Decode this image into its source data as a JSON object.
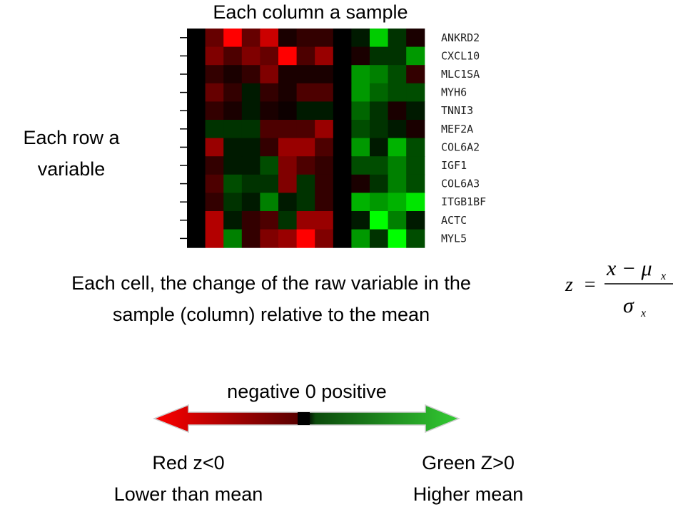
{
  "header": {
    "column_note": "Each column a sample",
    "row_note_line1": "Each row a",
    "row_note_line2": "variable"
  },
  "heatmap": {
    "rows": [
      "ANKRD2",
      "CXCL10",
      "MLC1SA",
      "MYH6",
      "TNNI3",
      "MEF2A",
      "COL6A2",
      "IGF1",
      "COL6A3",
      "ITGB1BF",
      "ACTC",
      "MYL5"
    ],
    "values": [
      [
        0,
        -0.4,
        -1,
        -0.4,
        -0.8,
        -0.1,
        -0.2,
        -0.2,
        0,
        0.1,
        0.8,
        0.2,
        -0.1
      ],
      [
        0,
        -0.5,
        -0.3,
        -0.5,
        -0.4,
        -1,
        -0.3,
        -0.6,
        0,
        -0.1,
        0.2,
        0.2,
        0.6
      ],
      [
        0,
        -0.2,
        -0.1,
        -0.2,
        -0.5,
        -0.1,
        -0.1,
        -0.1,
        0,
        0.6,
        0.5,
        0.3,
        -0.2
      ],
      [
        0,
        -0.4,
        -0.2,
        0.1,
        -0.2,
        -0.1,
        -0.3,
        -0.3,
        0,
        0.6,
        0.4,
        0.3,
        0.3
      ],
      [
        0,
        -0.2,
        -0.1,
        0.1,
        -0.1,
        -0.05,
        0.1,
        0.1,
        0,
        0.4,
        0.2,
        -0.1,
        0.1
      ],
      [
        0,
        0.2,
        0.2,
        0.2,
        -0.3,
        -0.3,
        -0.3,
        -0.6,
        0,
        0.3,
        0.2,
        0.1,
        -0.1
      ],
      [
        0,
        -0.6,
        0.1,
        0.1,
        -0.2,
        -0.6,
        -0.6,
        -0.3,
        0,
        0.6,
        0.1,
        0.7,
        0.3
      ],
      [
        0,
        -0.2,
        0.1,
        0.1,
        0.3,
        -0.5,
        -0.3,
        -0.2,
        0,
        0.3,
        0.3,
        0.5,
        0.3
      ],
      [
        0,
        -0.3,
        0.3,
        0.2,
        0.2,
        -0.5,
        0.2,
        -0.2,
        0,
        -0.1,
        0.2,
        0.5,
        0.3
      ],
      [
        0,
        -0.2,
        0.2,
        0.1,
        0.5,
        0.1,
        0.2,
        -0.2,
        0,
        0.7,
        0.6,
        0.7,
        0.9
      ],
      [
        0,
        -0.7,
        0.1,
        -0.2,
        -0.3,
        0.2,
        -0.6,
        -0.6,
        0,
        0.1,
        1,
        0.5,
        0.1
      ],
      [
        0,
        -0.7,
        0.5,
        -0.2,
        -0.5,
        -0.6,
        -1,
        -0.5,
        0,
        0.6,
        0.2,
        1,
        0.3
      ]
    ]
  },
  "description": {
    "line1": "Each cell, the change of the raw variable in the",
    "line2": "sample (column) relative to the mean"
  },
  "formula": {
    "lhs": "z",
    "eq": "=",
    "numerator": "x − μ",
    "numerator_sub": "x",
    "denominator": "σ",
    "denominator_sub": "x"
  },
  "scale": {
    "label": "negative 0 positive",
    "left_line1": "Red z<0",
    "left_line2": "Lower than mean",
    "right_line1": "Green Z>0",
    "right_line2": "Higher mean"
  }
}
